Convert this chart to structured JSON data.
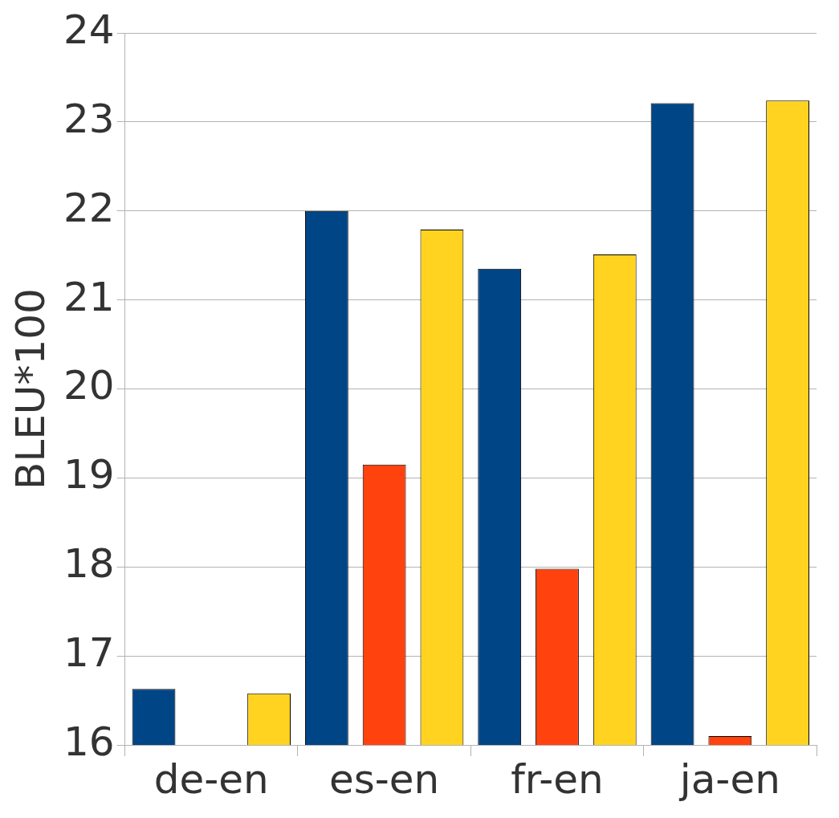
{
  "chart_data": {
    "type": "bar",
    "ylabel": "BLEU*100",
    "categories": [
      "de-en",
      "es-en",
      "fr-en",
      "ja-en"
    ],
    "series": [
      {
        "color": "#004586",
        "values": [
          16.63,
          22.0,
          21.35,
          23.21
        ]
      },
      {
        "color": "#ff420e",
        "values": [
          null,
          19.15,
          17.98,
          16.1
        ]
      },
      {
        "color": "#ffd320",
        "values": [
          16.58,
          21.79,
          21.51,
          23.24
        ]
      }
    ],
    "ylim": [
      16,
      24
    ],
    "yticks": [
      16,
      17,
      18,
      19,
      20,
      21,
      22,
      23,
      24
    ],
    "grid": "y",
    "legend": false
  }
}
